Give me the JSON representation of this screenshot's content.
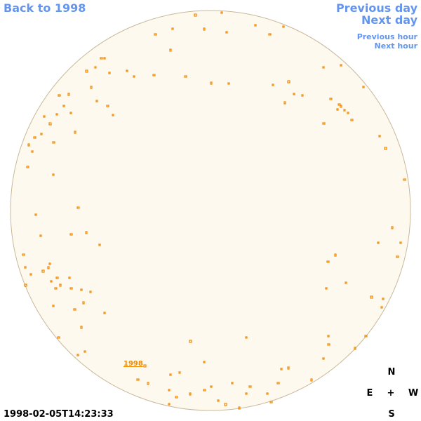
{
  "nav": {
    "back": "Back to 1998",
    "previous_day": "Previous day",
    "next_day": "Next day",
    "previous_hour": "Previous hour",
    "next_hour": "Next hour"
  },
  "disk_label": "1998",
  "timestamp": "1998-02-05T14:23:33",
  "compass": {
    "north": "N",
    "east": "E",
    "center": "+",
    "west": "W",
    "south": "S"
  }
}
